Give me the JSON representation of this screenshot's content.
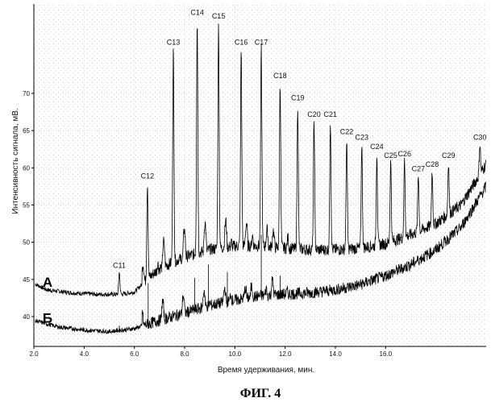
{
  "chart_data": {
    "type": "line",
    "title": "",
    "xlabel": "Время удерживания, мин.",
    "ylabel": "Интенсивность сигнала, мВ.",
    "xlim": [
      2.0,
      20.0
    ],
    "ylim": [
      36,
      82
    ],
    "grid": true,
    "x_ticks": [
      {
        "value": 2.0,
        "label": "2.0"
      },
      {
        "value": 4.0,
        "label": "4.0"
      },
      {
        "value": 6.0,
        "label": "6.0"
      },
      {
        "value": 8.0,
        "label": "8.0"
      },
      {
        "value": 10.0,
        "label": "10.0"
      },
      {
        "value": 12.0,
        "label": "12.0"
      },
      {
        "value": 14.0,
        "label": "14.0"
      },
      {
        "value": 16.0,
        "label": "16.0"
      }
    ],
    "y_ticks": [
      {
        "value": 40,
        "label": "40"
      },
      {
        "value": 45,
        "label": "45"
      },
      {
        "value": 50,
        "label": "50"
      },
      {
        "value": 55,
        "label": "55"
      },
      {
        "value": 60,
        "label": "60"
      },
      {
        "value": 65,
        "label": "65"
      },
      {
        "value": 70,
        "label": "70"
      }
    ],
    "series": [
      {
        "name": "А",
        "color": "#000000",
        "baseline": [
          [
            2.0,
            44.5
          ],
          [
            2.5,
            43.6
          ],
          [
            3.5,
            43.2
          ],
          [
            4.5,
            43.0
          ],
          [
            5.5,
            43.0
          ],
          [
            6.0,
            43.3
          ],
          [
            6.5,
            45.0
          ],
          [
            7.0,
            46.5
          ],
          [
            8.0,
            48.0
          ],
          [
            9.0,
            49.0
          ],
          [
            10.0,
            49.5
          ],
          [
            11.0,
            49.5
          ],
          [
            12.0,
            49.2
          ],
          [
            13.0,
            49.0
          ],
          [
            14.0,
            49.0
          ],
          [
            15.0,
            49.2
          ],
          [
            16.0,
            49.8
          ],
          [
            17.0,
            51.0
          ],
          [
            18.0,
            52.5
          ],
          [
            19.0,
            55.0
          ],
          [
            20.0,
            60.5
          ]
        ],
        "peaks": [
          {
            "label": "C11",
            "x": 5.4,
            "y": 46.0
          },
          {
            "label": "C12",
            "x": 6.52,
            "y": 58.0
          },
          {
            "label": "C13",
            "x": 7.55,
            "y": 76.0
          },
          {
            "label": "C14",
            "x": 8.5,
            "y": 80.0
          },
          {
            "label": "C15",
            "x": 9.35,
            "y": 79.5
          },
          {
            "label": "C16",
            "x": 10.25,
            "y": 76.0
          },
          {
            "label": "C17",
            "x": 11.05,
            "y": 76.0
          },
          {
            "label": "C18",
            "x": 11.8,
            "y": 71.5
          },
          {
            "label": "C19",
            "x": 12.5,
            "y": 68.5
          },
          {
            "label": "C20",
            "x": 13.15,
            "y": 66.3
          },
          {
            "label": "C21",
            "x": 13.8,
            "y": 66.3
          },
          {
            "label": "C22",
            "x": 14.45,
            "y": 64.0
          },
          {
            "label": "C23",
            "x": 15.05,
            "y": 63.2
          },
          {
            "label": "C24",
            "x": 15.65,
            "y": 62.0
          },
          {
            "label": "C25",
            "x": 16.2,
            "y": 60.8
          },
          {
            "label": "C26",
            "x": 16.75,
            "y": 61.0
          },
          {
            "label": "C27",
            "x": 17.3,
            "y": 59.0
          },
          {
            "label": "C28",
            "x": 17.85,
            "y": 59.6
          },
          {
            "label": "C29",
            "x": 18.5,
            "y": 60.8
          },
          {
            "label": "C30",
            "x": 19.75,
            "y": 63.2
          }
        ]
      },
      {
        "name": "Б",
        "color": "#000000",
        "baseline": [
          [
            2.0,
            39.5
          ],
          [
            3.0,
            38.6
          ],
          [
            4.0,
            38.2
          ],
          [
            5.0,
            38.0
          ],
          [
            6.0,
            38.4
          ],
          [
            7.0,
            39.5
          ],
          [
            8.0,
            40.5
          ],
          [
            9.0,
            41.5
          ],
          [
            10.0,
            42.2
          ],
          [
            11.0,
            42.8
          ],
          [
            12.0,
            43.0
          ],
          [
            13.0,
            43.2
          ],
          [
            14.0,
            43.6
          ],
          [
            15.0,
            44.3
          ],
          [
            16.0,
            45.5
          ],
          [
            17.0,
            47.0
          ],
          [
            18.0,
            49.0
          ],
          [
            19.0,
            52.0
          ],
          [
            20.0,
            57.5
          ]
        ]
      }
    ]
  },
  "figure_caption": "ФИГ. 4"
}
